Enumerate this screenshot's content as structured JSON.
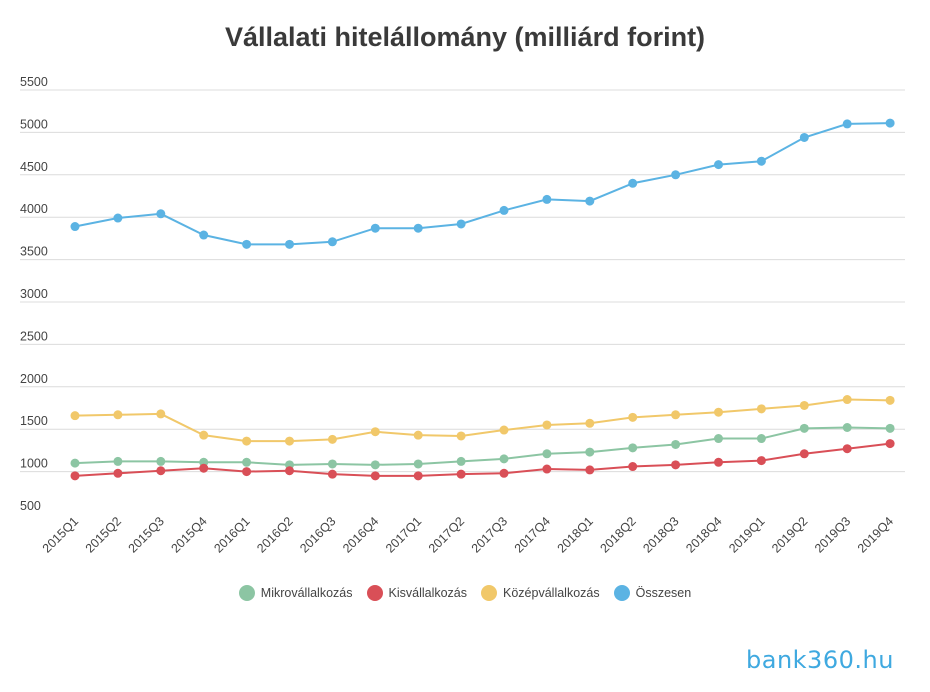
{
  "chart_data": {
    "type": "line",
    "title": "Vállalati hitelállomány (milliárd forint)",
    "xlabel": "",
    "ylabel": "",
    "ylim": [
      500,
      5500
    ],
    "yticks": [
      500,
      1000,
      1500,
      2000,
      2500,
      3000,
      3500,
      4000,
      4500,
      5000,
      5500
    ],
    "grid": true,
    "legend_position": "bottom",
    "categories": [
      "2015Q1",
      "2015Q2",
      "2015Q3",
      "2015Q4",
      "2016Q1",
      "2016Q2",
      "2016Q3",
      "2016Q4",
      "2017Q1",
      "2017Q2",
      "2017Q3",
      "2017Q4",
      "2018Q1",
      "2018Q2",
      "2018Q3",
      "2018Q4",
      "2019Q1",
      "2019Q2",
      "2019Q3",
      "2019Q4"
    ],
    "series": [
      {
        "name": "Mikrovállalkozás",
        "color": "#8cc5a3",
        "values": [
          1100,
          1120,
          1120,
          1110,
          1110,
          1080,
          1090,
          1080,
          1090,
          1120,
          1150,
          1210,
          1230,
          1280,
          1320,
          1390,
          1390,
          1510,
          1520,
          1510
        ]
      },
      {
        "name": "Kisvállalkozás",
        "color": "#d94f57",
        "values": [
          950,
          980,
          1010,
          1040,
          1000,
          1010,
          970,
          950,
          950,
          970,
          980,
          1030,
          1020,
          1060,
          1080,
          1110,
          1130,
          1210,
          1270,
          1330
        ]
      },
      {
        "name": "Középvállalkozás",
        "color": "#f1c86a",
        "values": [
          1660,
          1670,
          1680,
          1430,
          1360,
          1360,
          1380,
          1470,
          1430,
          1420,
          1490,
          1550,
          1570,
          1640,
          1670,
          1700,
          1740,
          1780,
          1850,
          1840
        ]
      },
      {
        "name": "Összesen",
        "color": "#5bb3e3",
        "values": [
          3890,
          3990,
          4040,
          3790,
          3680,
          3680,
          3710,
          3870,
          3870,
          3920,
          4080,
          4210,
          4190,
          4400,
          4500,
          4620,
          4660,
          4940,
          5100,
          5110
        ]
      }
    ]
  },
  "brand": {
    "text": "bank360.hu"
  }
}
